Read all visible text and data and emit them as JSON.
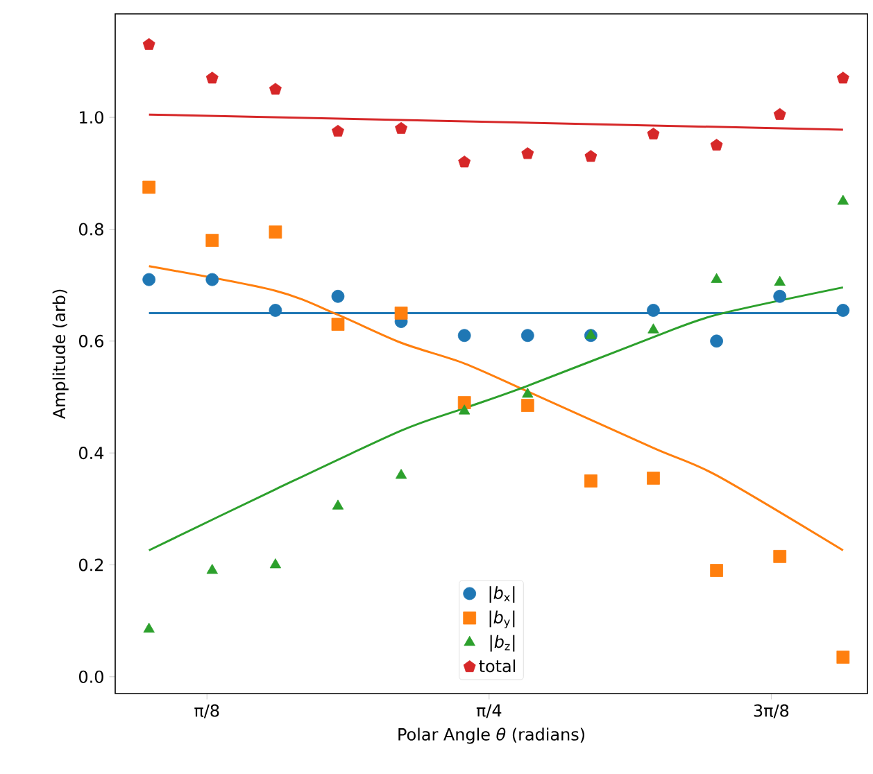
{
  "chart_data": {
    "type": "scatter",
    "xlabel": "Polar Angle *θ* (radians)",
    "ylabel": "Amplitude (arb)",
    "xlim": [
      0.265,
      1.312
    ],
    "ylim": [
      -0.03,
      1.185
    ],
    "xticks": [
      {
        "value": 0.3927,
        "label": "π/8"
      },
      {
        "value": 0.7854,
        "label": "π/4"
      },
      {
        "value": 1.1781,
        "label": "3π/8"
      }
    ],
    "yticks": [
      {
        "value": 0.0,
        "label": "0.0"
      },
      0.2,
      0.4,
      0.6,
      0.8,
      {
        "value": 1.0,
        "label": "1.0"
      }
    ],
    "x": [
      0.312,
      0.4,
      0.488,
      0.575,
      0.663,
      0.751,
      0.839,
      0.927,
      1.014,
      1.102,
      1.19,
      1.278
    ],
    "legend": "bottom",
    "series": [
      {
        "name": "|*b*$_{x}$|",
        "color": "#1f77b4",
        "marker": "circle",
        "values": [
          0.71,
          0.71,
          0.655,
          0.68,
          0.635,
          0.61,
          0.61,
          0.61,
          0.655,
          0.6,
          0.68,
          0.655
        ]
      },
      {
        "name": "|*b*$_{y}$|",
        "color": "#ff7f0e",
        "marker": "square",
        "values": [
          0.875,
          0.78,
          0.795,
          0.63,
          0.65,
          0.49,
          0.485,
          0.35,
          0.355,
          0.19,
          0.215,
          0.035
        ]
      },
      {
        "name": "|*b*$_{z}$|",
        "color": "#2ca02c",
        "marker": "triangle",
        "values": [
          0.085,
          0.19,
          0.2,
          0.305,
          0.36,
          0.475,
          0.505,
          0.61,
          0.62,
          0.71,
          0.705,
          0.85
        ]
      },
      {
        "name": "total",
        "color": "#d62728",
        "values": [
          1.13,
          1.07,
          1.05,
          0.975,
          0.98,
          0.92,
          0.935,
          0.93,
          0.97,
          0.95,
          1.005,
          1.07
        ]
      },
      {
        "type": "line",
        "color": "#1f77b4",
        "x": [
          0.312,
          1.278
        ],
        "values": [
          0.65,
          0.65
        ]
      },
      {
        "type": "line",
        "color": "#ff7f0e",
        "x": [
          0.312,
          0.488,
          0.575,
          0.663,
          0.751,
          0.839,
          1.014,
          1.102,
          1.278
        ],
        "values": [
          0.734,
          0.69,
          0.647,
          0.597,
          0.56,
          0.51,
          0.409,
          0.36,
          0.226
        ]
      },
      {
        "type": "line",
        "color": "#2ca02c",
        "x": [
          0.312,
          0.488,
          0.663,
          0.751,
          0.839,
          1.014,
          1.102,
          1.278
        ],
        "values": [
          0.226,
          0.335,
          0.44,
          0.48,
          0.52,
          0.607,
          0.647,
          0.696
        ]
      },
      {
        "type": "line",
        "color": "#d62728",
        "x": [
          0.312,
          1.278
        ],
        "values": [
          1.005,
          0.978
        ]
      }
    ]
  }
}
